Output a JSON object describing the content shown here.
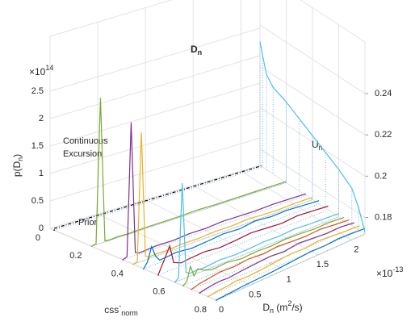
{
  "chart_data": {
    "type": "waterfall3d",
    "title": [
      {
        "text": "D",
        "script": "none"
      },
      {
        "text": "n",
        "script": "sub"
      }
    ],
    "z_label": [
      {
        "text": "p(D",
        "script": "none"
      },
      {
        "text": "n",
        "script": "sub"
      },
      {
        "text": ")",
        "script": "none"
      }
    ],
    "x_label": [
      {
        "text": "css",
        "script": "none"
      },
      {
        "text": "-",
        "script": "super"
      },
      {
        "text": "norm",
        "script": "sub"
      }
    ],
    "y_label": [
      {
        "text": "D",
        "script": "none"
      },
      {
        "text": "n",
        "script": "sub"
      },
      {
        "text": "  (m",
        "script": "none"
      },
      {
        "text": "2",
        "script": "super"
      },
      {
        "text": "/s)",
        "script": "none"
      }
    ],
    "z2_label": [
      {
        "text": "U",
        "script": "none"
      },
      {
        "text": "n",
        "script": "sub"
      }
    ],
    "z_exponent": [
      {
        "text": "×10",
        "script": "none"
      },
      {
        "text": "14",
        "script": "super"
      }
    ],
    "y_exponent": [
      {
        "text": "×10",
        "script": "none"
      },
      {
        "text": "-13",
        "script": "super"
      }
    ],
    "annotations": [
      "Continuous",
      "Excursion",
      "Prior"
    ],
    "xlim": [
      0,
      0.8
    ],
    "xticks": [
      0,
      0.2,
      0.4,
      0.6,
      0.8
    ],
    "ylim": [
      0,
      2.2
    ],
    "yticks": [
      0,
      0.5,
      1,
      1.5,
      2
    ],
    "zlim": [
      0,
      3.5
    ],
    "zticks": [
      0,
      0.5,
      1,
      1.5,
      2,
      2.5
    ],
    "z2lim": [
      0.172,
      0.265
    ],
    "z2ticks": [
      0.18,
      0.2,
      0.22,
      0.24
    ],
    "grid": true,
    "y": [
      0,
      0.05,
      0.1,
      0.15,
      0.2,
      0.3,
      0.4,
      0.6,
      0.8,
      1.0,
      1.2,
      1.4,
      1.6,
      1.8,
      2.0,
      2.2
    ],
    "series": [
      {
        "css": 0.02,
        "color": "#000000",
        "values": [
          0.03,
          0.03,
          0.03,
          0.03,
          0.03,
          0.03,
          0.03,
          0.03,
          0.03,
          0.03,
          0.03,
          0.03,
          0.03,
          0.03,
          0.03,
          0.03
        ]
      },
      {
        "css": 0.2,
        "color": "#77ac30",
        "values": [
          0,
          0.02,
          2.65,
          0.02,
          0.01,
          0.02,
          0.01,
          0.02,
          0.02,
          0.02,
          0.03,
          0.02,
          0.02,
          0.02,
          0.02,
          0.02
        ]
      },
      {
        "css": 0.35,
        "color": "#7e2f8e",
        "values": [
          0,
          0.03,
          2.45,
          0.05,
          0.02,
          0.03,
          0.04,
          0.03,
          0.05,
          0.04,
          0.06,
          0.05,
          0.04,
          0.05,
          0.04,
          0.03
        ]
      },
      {
        "css": 0.4,
        "color": "#edb120",
        "values": [
          0,
          0.02,
          2.35,
          0.06,
          0.03,
          0.04,
          0.03,
          0.05,
          0.04,
          0.06,
          0.05,
          0.07,
          0.05,
          0.04,
          0.05,
          0.04
        ]
      },
      {
        "css": 0.45,
        "color": "#0072bd",
        "values": [
          0,
          0.1,
          0.35,
          0.15,
          0.05,
          0.06,
          0.08,
          0.05,
          0.07,
          0.1,
          0.08,
          0.12,
          0.09,
          0.1,
          0.08,
          0.06
        ]
      },
      {
        "css": 0.52,
        "color": "#a2142f",
        "values": [
          0,
          0.15,
          0.3,
          0.45,
          0.12,
          0.06,
          0.08,
          0.1,
          0.07,
          0.09,
          0.12,
          0.1,
          0.08,
          0.11,
          0.09,
          0.07
        ]
      },
      {
        "css": 0.6,
        "color": "#4dbeee",
        "values": [
          0,
          0.05,
          1.75,
          0.1,
          0.05,
          0.06,
          0.05,
          0.08,
          0.06,
          0.07,
          0.09,
          0.08,
          0.1,
          0.08,
          0.07,
          0.06
        ]
      },
      {
        "css": 0.64,
        "color": "#77ac30",
        "values": [
          0,
          0.05,
          0.3,
          0.1,
          0.2,
          0.12,
          0.08,
          0.1,
          0.06,
          0.08,
          0.07,
          0.09,
          0.08,
          0.06,
          0.07,
          0.05
        ]
      },
      {
        "css": 0.68,
        "color": "#d95319",
        "values": [
          0,
          0.02,
          0.04,
          0.05,
          0.06,
          0.08,
          0.1,
          0.09,
          0.12,
          0.1,
          0.13,
          0.11,
          0.1,
          0.12,
          0.09,
          0.07
        ]
      },
      {
        "css": 0.72,
        "color": "#7e2f8e",
        "values": [
          0,
          0.02,
          0.03,
          0.04,
          0.05,
          0.06,
          0.05,
          0.08,
          0.1,
          0.12,
          0.1,
          0.14,
          0.12,
          0.1,
          0.11,
          0.08
        ]
      },
      {
        "css": 0.76,
        "color": "#edb120",
        "values": [
          0,
          0.01,
          0.02,
          0.03,
          0.03,
          0.04,
          0.06,
          0.05,
          0.07,
          0.1,
          0.12,
          0.11,
          0.14,
          0.12,
          0.1,
          0.09
        ]
      },
      {
        "css": 0.8,
        "color": "#0072bd",
        "values": [
          0,
          0.01,
          0.01,
          0.02,
          0.02,
          0.03,
          0.04,
          0.05,
          0.06,
          0.08,
          0.1,
          0.12,
          0.11,
          0.13,
          0.12,
          0.1
        ]
      }
    ],
    "u_series": {
      "color": "#4dbeee",
      "x": [
        0,
        0.02,
        0.05,
        0.1,
        0.2,
        0.3,
        0.4,
        0.5,
        0.6,
        0.7,
        0.75,
        0.8
      ],
      "values": [
        0.232,
        0.226,
        0.218,
        0.214,
        0.211,
        0.207,
        0.203,
        0.199,
        0.195,
        0.19,
        0.183,
        0.173
      ]
    }
  }
}
